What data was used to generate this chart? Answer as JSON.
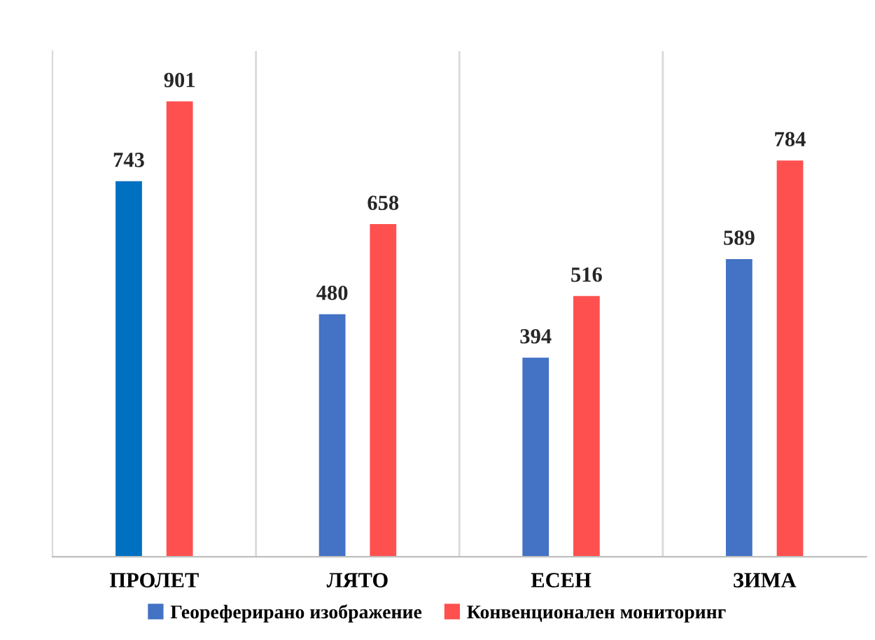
{
  "chart_data": {
    "type": "bar",
    "categories": [
      "ПРОЛЕТ",
      "ЛЯТО",
      "ЕСЕН",
      "ЗИМА"
    ],
    "series": [
      {
        "name": "Геореферирано изображение",
        "color": "#4472c4",
        "colors": [
          "#0070c0",
          "#4472c4",
          "#4472c4",
          "#4472c4"
        ],
        "values": [
          743,
          480,
          394,
          589
        ]
      },
      {
        "name": "Конвенционален мониторинг",
        "color": "#ff5050",
        "values": [
          901,
          658,
          516,
          784
        ]
      }
    ],
    "data_labels": true,
    "grid": "x",
    "legend": "bottom"
  }
}
